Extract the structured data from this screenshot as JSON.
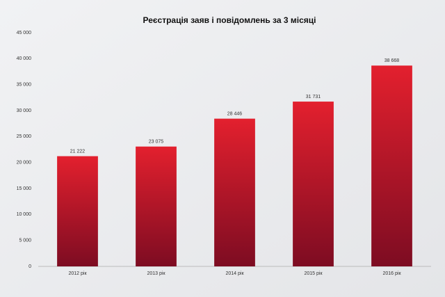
{
  "chart_data": {
    "type": "bar",
    "title": "Реєстрація заяв і повідомлень за 3 місяці",
    "categories": [
      "2012 рік",
      "2013 рік",
      "2014 рік",
      "2015 рік",
      "2016 рік"
    ],
    "values": [
      21222,
      23075,
      28446,
      31731,
      38668
    ],
    "value_labels": [
      "21 222",
      "23 075",
      "28 446",
      "31 731",
      "38 668"
    ],
    "color": "#c8102e",
    "ylim": [
      0,
      45000
    ],
    "yticks": [
      0,
      {
        "value": 5000,
        "label": "5 000"
      },
      {
        "value": 10000,
        "label": "10 000"
      },
      {
        "value": 15000,
        "label": "15 000"
      },
      {
        "value": 20000,
        "label": "20 000"
      },
      {
        "value": 25000,
        "label": "25 000"
      },
      {
        "value": 30000,
        "label": "30 000"
      },
      {
        "value": 35000,
        "label": "35 000"
      },
      {
        "value": 40000,
        "label": "40 000"
      },
      {
        "value": 45000,
        "label": "45 000"
      }
    ],
    "grid": false
  }
}
